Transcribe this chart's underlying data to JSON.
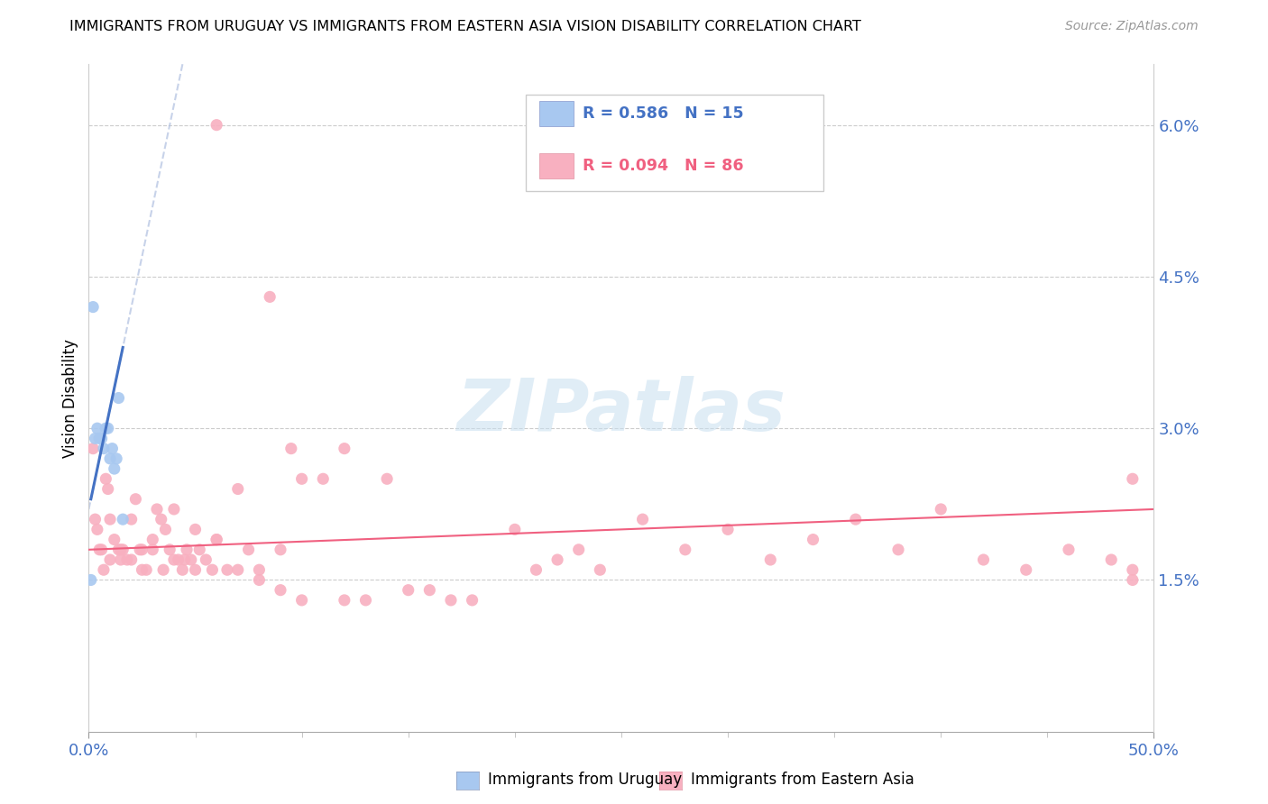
{
  "title": "IMMIGRANTS FROM URUGUAY VS IMMIGRANTS FROM EASTERN ASIA VISION DISABILITY CORRELATION CHART",
  "source": "Source: ZipAtlas.com",
  "ylabel": "Vision Disability",
  "right_yticks": [
    "6.0%",
    "4.5%",
    "3.0%",
    "1.5%"
  ],
  "right_ytick_vals": [
    0.06,
    0.045,
    0.03,
    0.015
  ],
  "xlim": [
    0.0,
    0.5
  ],
  "ylim": [
    0.0,
    0.066
  ],
  "legend_label1": "Immigrants from Uruguay",
  "legend_label2": "Immigrants from Eastern Asia",
  "color_blue": "#A8C8F0",
  "color_pink": "#F8B0C0",
  "color_blue_line": "#4472C4",
  "color_pink_line": "#F06080",
  "color_dashed": "#B0C0E0",
  "watermark_text": "ZIPatlas",
  "uruguay_x": [
    0.001,
    0.002,
    0.003,
    0.004,
    0.005,
    0.006,
    0.007,
    0.008,
    0.009,
    0.01,
    0.011,
    0.012,
    0.013,
    0.014,
    0.016
  ],
  "uruguay_y": [
    0.015,
    0.042,
    0.029,
    0.03,
    0.029,
    0.029,
    0.028,
    0.03,
    0.03,
    0.027,
    0.028,
    0.026,
    0.027,
    0.033,
    0.021
  ],
  "eastern_asia_x": [
    0.06,
    0.002,
    0.003,
    0.004,
    0.005,
    0.006,
    0.007,
    0.008,
    0.009,
    0.01,
    0.012,
    0.014,
    0.015,
    0.016,
    0.018,
    0.02,
    0.022,
    0.024,
    0.025,
    0.027,
    0.03,
    0.032,
    0.034,
    0.036,
    0.038,
    0.04,
    0.042,
    0.044,
    0.046,
    0.048,
    0.05,
    0.052,
    0.055,
    0.058,
    0.06,
    0.065,
    0.07,
    0.075,
    0.08,
    0.085,
    0.09,
    0.095,
    0.1,
    0.11,
    0.12,
    0.13,
    0.14,
    0.15,
    0.16,
    0.17,
    0.18,
    0.2,
    0.21,
    0.22,
    0.23,
    0.24,
    0.26,
    0.28,
    0.3,
    0.32,
    0.34,
    0.36,
    0.38,
    0.4,
    0.42,
    0.44,
    0.46,
    0.48,
    0.49,
    0.49,
    0.49,
    0.01,
    0.015,
    0.02,
    0.025,
    0.03,
    0.035,
    0.04,
    0.045,
    0.05,
    0.06,
    0.07,
    0.08,
    0.09,
    0.1,
    0.12
  ],
  "eastern_asia_y": [
    0.06,
    0.028,
    0.021,
    0.02,
    0.018,
    0.018,
    0.016,
    0.025,
    0.024,
    0.021,
    0.019,
    0.018,
    0.017,
    0.018,
    0.017,
    0.021,
    0.023,
    0.018,
    0.018,
    0.016,
    0.019,
    0.022,
    0.021,
    0.02,
    0.018,
    0.022,
    0.017,
    0.016,
    0.018,
    0.017,
    0.02,
    0.018,
    0.017,
    0.016,
    0.019,
    0.016,
    0.024,
    0.018,
    0.015,
    0.043,
    0.018,
    0.028,
    0.025,
    0.025,
    0.028,
    0.013,
    0.025,
    0.014,
    0.014,
    0.013,
    0.013,
    0.02,
    0.016,
    0.017,
    0.018,
    0.016,
    0.021,
    0.018,
    0.02,
    0.017,
    0.019,
    0.021,
    0.018,
    0.022,
    0.017,
    0.016,
    0.018,
    0.017,
    0.016,
    0.025,
    0.015,
    0.017,
    0.018,
    0.017,
    0.016,
    0.018,
    0.016,
    0.017,
    0.017,
    0.016,
    0.019,
    0.016,
    0.016,
    0.014,
    0.013,
    0.013
  ]
}
